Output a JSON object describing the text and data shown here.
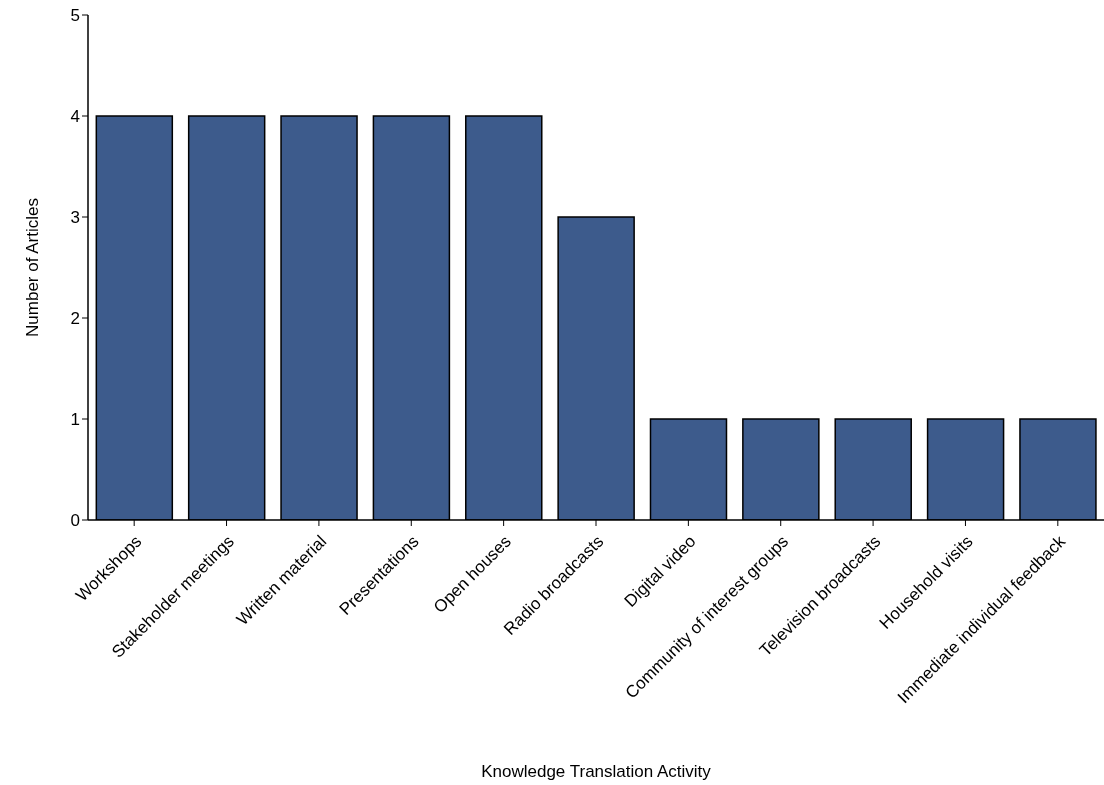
{
  "chart_data": {
    "type": "bar",
    "xlabel": "Knowledge Translation Activity",
    "ylabel": "Number of Articles",
    "categories": [
      "Workshops",
      "Stakeholder meetings",
      "Written material",
      "Presentations",
      "Open houses",
      "Radio broadcasts",
      "Digital video",
      "Community of interest groups",
      "Television broadcasts",
      "Household visits",
      "Immediate individual feedback"
    ],
    "values": [
      4,
      4,
      4,
      4,
      4,
      3,
      1,
      1,
      1,
      1,
      1
    ],
    "color": "#3d5b8c",
    "ylim": [
      0,
      5
    ],
    "yticks": [
      0,
      1,
      2,
      3,
      4,
      5
    ],
    "grid": false,
    "legend": false
  }
}
